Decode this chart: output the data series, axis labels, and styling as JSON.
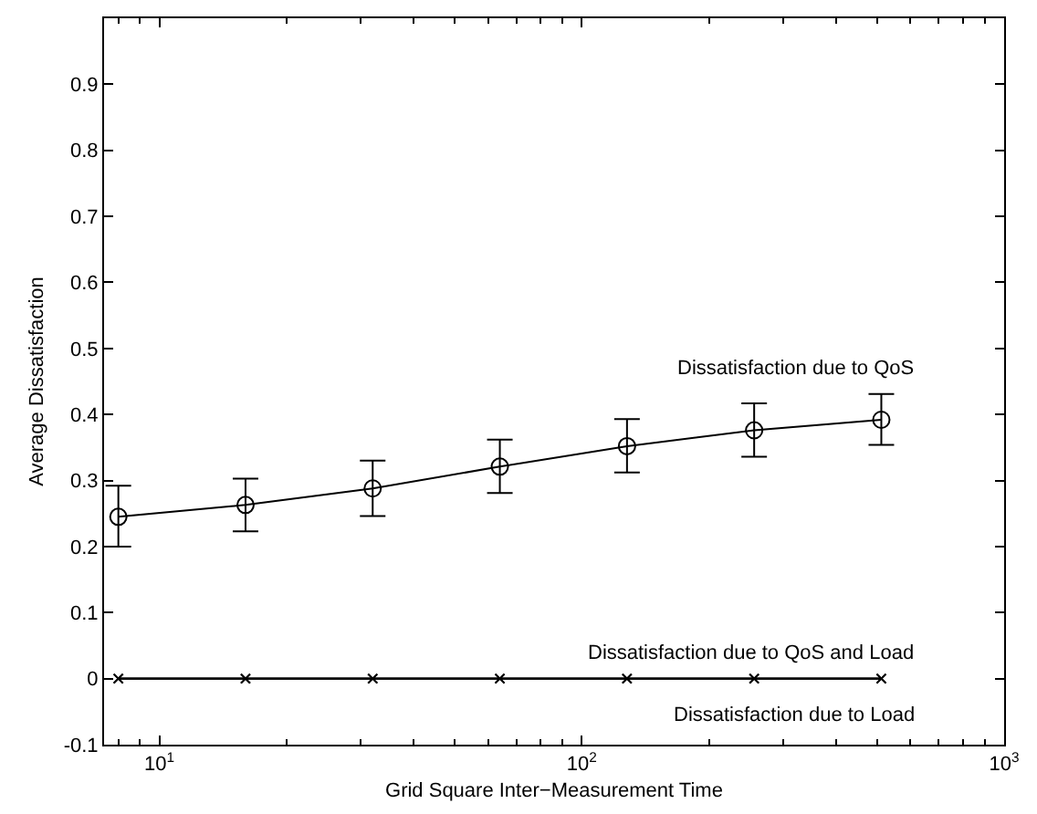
{
  "chart_data": {
    "type": "line",
    "xlabel": "Grid Square Inter−Measurement Time",
    "ylabel": "Average Dissatisfaction",
    "log": "x",
    "xlim": [
      7.4,
      1000
    ],
    "ylim": [
      -0.1,
      1.0
    ],
    "xticks": [
      {
        "value": 10,
        "label": "10$^{1}$"
      },
      {
        "value": 100,
        "label": "10$^{2}$"
      },
      {
        "value": 1000,
        "label": "10$^{3}$"
      }
    ],
    "yticks": [
      -0.1,
      0,
      0.1,
      0.2,
      0.3,
      0.4,
      0.5,
      0.6,
      0.7,
      0.8,
      0.9
    ],
    "legend": false,
    "line_style": "solid",
    "x": [
      8,
      16,
      32,
      64,
      128,
      256,
      512
    ],
    "series": [
      {
        "name": "Dissatisfaction due to QoS",
        "color": "#000000",
        "marker": "circle",
        "values": [
          0.245,
          0.263,
          0.288,
          0.321,
          0.352,
          0.376,
          0.392
        ],
        "errors": [
          [
            0.2,
            0.292
          ],
          [
            0.223,
            0.303
          ],
          [
            0.246,
            0.33
          ],
          [
            0.281,
            0.362
          ],
          [
            0.312,
            0.393
          ],
          [
            0.336,
            0.417
          ],
          [
            0.354,
            0.431
          ]
        ]
      },
      {
        "name": "Dissatisfaction due to QoS and Load",
        "color": "#000000",
        "marker": "cross",
        "values": [
          0,
          0,
          0,
          0,
          0,
          0,
          0
        ]
      },
      {
        "name": "Dissatisfaction due to Load",
        "color": "#000000",
        "marker": "cross",
        "values": [
          0,
          0,
          0,
          0,
          0,
          0,
          0
        ]
      }
    ]
  }
}
